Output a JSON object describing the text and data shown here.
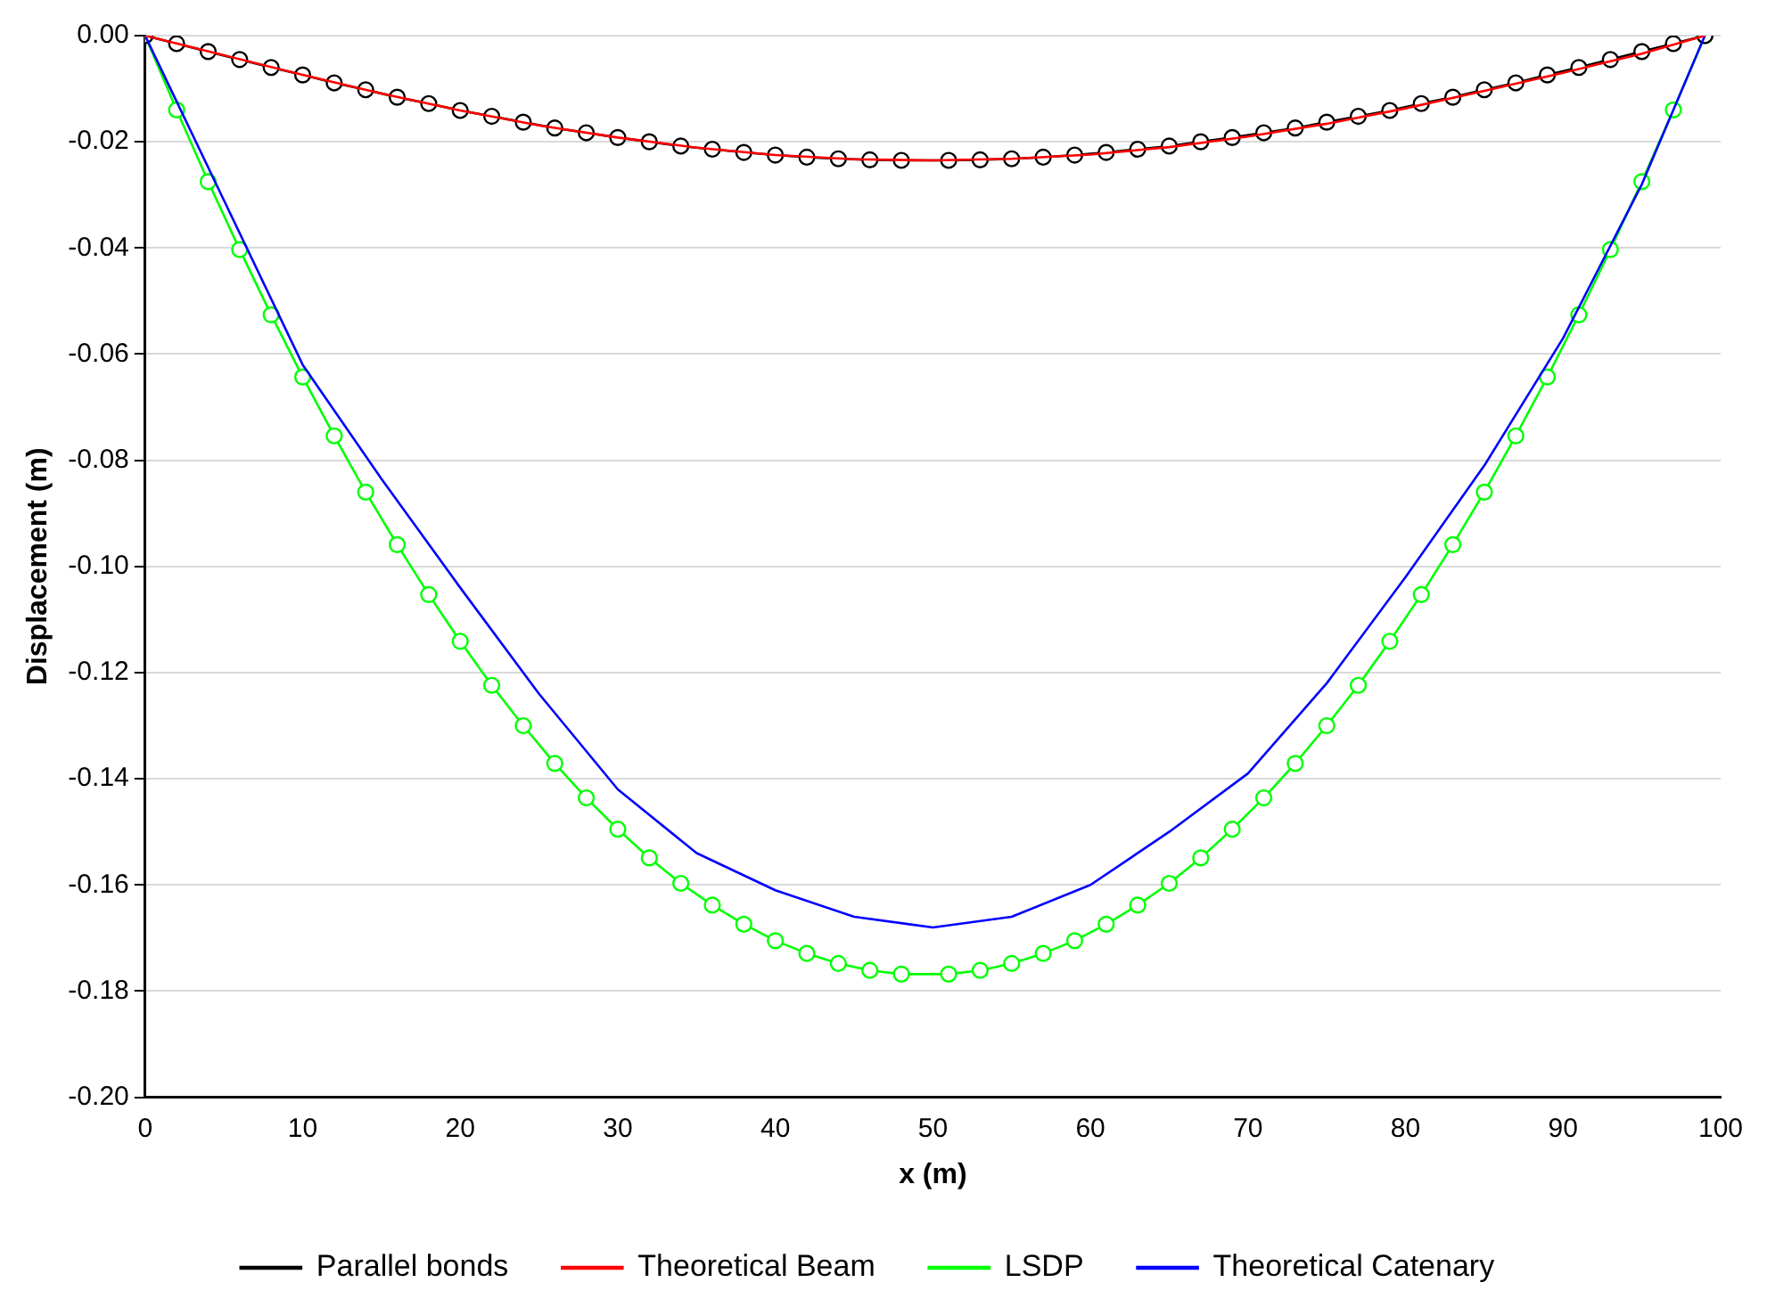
{
  "chart_data": {
    "type": "line",
    "xlabel": "x (m)",
    "ylabel": "Displacement (m)",
    "xlim": [
      0,
      100
    ],
    "ylim": [
      -0.2,
      0
    ],
    "xticks": [
      0,
      10,
      20,
      30,
      40,
      50,
      60,
      70,
      80,
      90,
      100
    ],
    "yticks": [
      {
        "value": 0,
        "label": "0.00"
      },
      {
        "value": -0.02,
        "label": "-0.02"
      },
      {
        "value": -0.04,
        "label": "-0.04"
      },
      {
        "value": -0.06,
        "label": "-0.06"
      },
      {
        "value": -0.08,
        "label": "-0.08"
      },
      {
        "value": -0.1,
        "label": "-0.10"
      },
      {
        "value": -0.12,
        "label": "-0.12"
      },
      {
        "value": -0.14,
        "label": "-0.14"
      },
      {
        "value": -0.16,
        "label": "-0.16"
      },
      {
        "value": -0.18,
        "label": "-0.18"
      },
      {
        "value": -0.2,
        "label": "-0.20"
      }
    ],
    "grid": "y",
    "legend": "bottom",
    "line_style": "solid",
    "series": [
      {
        "name": "Parallel bonds",
        "color": "#000000",
        "marker": "circle",
        "x": [
          0,
          2,
          4,
          6,
          8,
          10,
          12,
          14,
          16,
          18,
          20,
          22,
          24,
          26,
          28,
          30,
          32,
          34,
          36,
          38,
          40,
          42,
          44,
          46,
          48,
          51,
          53,
          55,
          57,
          59,
          61,
          63,
          65,
          67,
          69,
          71,
          73,
          75,
          77,
          79,
          81,
          83,
          85,
          87,
          89,
          91,
          93,
          95,
          97,
          99
        ],
        "values": [
          0,
          -0.0015,
          -0.003,
          -0.0045,
          -0.006,
          -0.0074,
          -0.0089,
          -0.0102,
          -0.0116,
          -0.0128,
          -0.0141,
          -0.0152,
          -0.0163,
          -0.0174,
          -0.0183,
          -0.0192,
          -0.02,
          -0.0208,
          -0.0214,
          -0.022,
          -0.0225,
          -0.0229,
          -0.0232,
          -0.0234,
          -0.0235,
          -0.0235,
          -0.0234,
          -0.0232,
          -0.0229,
          -0.0225,
          -0.022,
          -0.0214,
          -0.0208,
          -0.02,
          -0.0192,
          -0.0183,
          -0.0174,
          -0.0163,
          -0.0152,
          -0.0141,
          -0.0128,
          -0.0116,
          -0.0102,
          -0.0089,
          -0.0074,
          -0.006,
          -0.0045,
          -0.003,
          -0.0015,
          0
        ]
      },
      {
        "name": "Theoretical Beam",
        "color": "#ff0000",
        "marker": "none",
        "x": [
          0,
          5,
          10,
          15,
          20,
          25,
          30,
          35,
          40,
          45,
          50,
          55,
          60,
          65,
          70,
          75,
          80,
          85,
          90,
          95,
          99
        ],
        "values": [
          0,
          -0.0037,
          -0.0074,
          -0.0109,
          -0.0141,
          -0.0169,
          -0.0192,
          -0.0211,
          -0.0225,
          -0.0233,
          -0.0235,
          -0.0232,
          -0.0224,
          -0.021,
          -0.019,
          -0.0166,
          -0.0137,
          -0.0104,
          -0.007,
          -0.0034,
          0
        ]
      },
      {
        "name": "LSDP",
        "color": "#00ff00",
        "marker": "circle",
        "x": [
          0,
          2,
          4,
          6,
          8,
          10,
          12,
          14,
          16,
          18,
          20,
          22,
          24,
          26,
          28,
          30,
          32,
          34,
          36,
          38,
          40,
          42,
          44,
          46,
          48,
          51,
          53,
          55,
          57,
          59,
          61,
          63,
          65,
          67,
          69,
          71,
          73,
          75,
          77,
          79,
          81,
          83,
          85,
          87,
          89,
          91,
          93,
          95,
          97,
          99
        ],
        "values": [
          0,
          -0.014,
          -0.0275,
          -0.0403,
          -0.0526,
          -0.0643,
          -0.0754,
          -0.086,
          -0.0959,
          -0.1053,
          -0.1141,
          -0.1224,
          -0.13,
          -0.1371,
          -0.1436,
          -0.1495,
          -0.1549,
          -0.1597,
          -0.1638,
          -0.1674,
          -0.1705,
          -0.1729,
          -0.1748,
          -0.1761,
          -0.1768,
          -0.1768,
          -0.1761,
          -0.1748,
          -0.1729,
          -0.1705,
          -0.1674,
          -0.1638,
          -0.1597,
          -0.1549,
          -0.1495,
          -0.1436,
          -0.1371,
          -0.13,
          -0.1224,
          -0.1141,
          -0.1053,
          -0.0959,
          -0.086,
          -0.0754,
          -0.0643,
          -0.0526,
          -0.0403,
          -0.0275,
          -0.014,
          0
        ]
      },
      {
        "name": "Theoretical Catenary",
        "color": "#0000ff",
        "marker": "none",
        "x": [
          0,
          5,
          10,
          15,
          20,
          25,
          30,
          35,
          40,
          45,
          50,
          55,
          60,
          65,
          70,
          75,
          80,
          85,
          90,
          95,
          99
        ],
        "values": [
          0,
          -0.031,
          -0.062,
          -0.0835,
          -0.104,
          -0.124,
          -0.142,
          -0.154,
          -0.161,
          -0.166,
          -0.168,
          -0.166,
          -0.16,
          -0.15,
          -0.139,
          -0.122,
          -0.102,
          -0.081,
          -0.057,
          -0.028,
          0
        ]
      }
    ]
  }
}
